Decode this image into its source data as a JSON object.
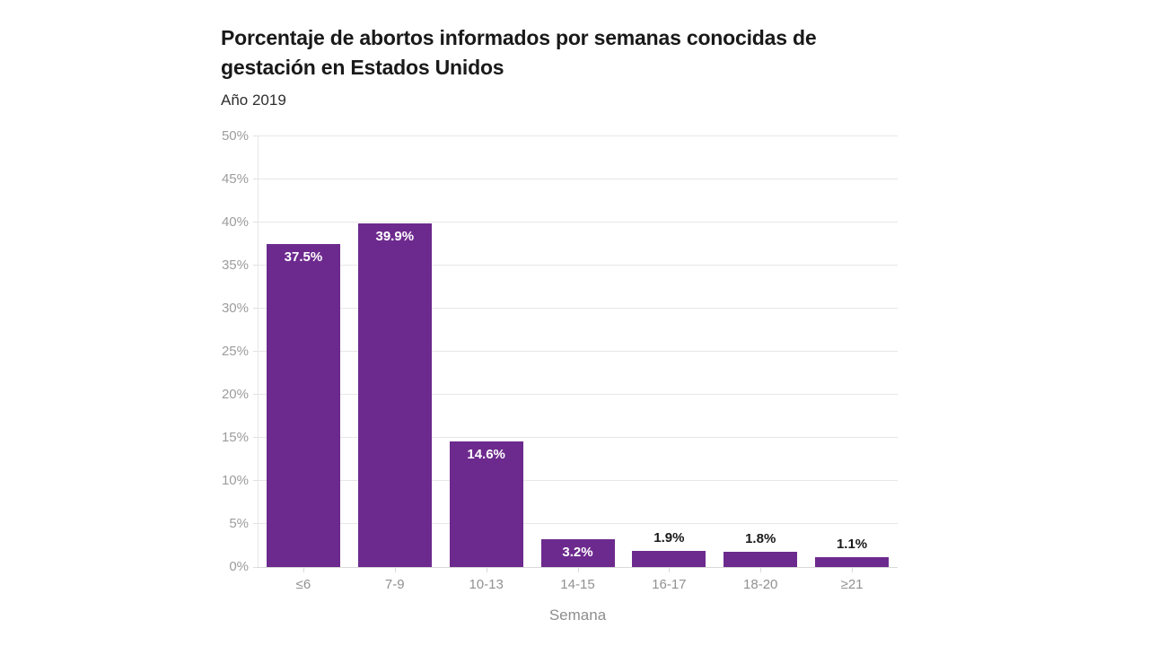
{
  "header": {
    "title": "Porcentaje de abortos informados por semanas conocidas de gestación en Estados Unidos",
    "subtitle": "Año 2019"
  },
  "chart_data": {
    "type": "bar",
    "title": "Porcentaje de abortos informados por semanas conocidas de gestación en Estados Unidos",
    "subtitle": "Año 2019",
    "categories": [
      "≤6",
      "7-9",
      "10-13",
      "14-15",
      "16-17",
      "18-20",
      "≥21"
    ],
    "values": [
      37.5,
      39.9,
      14.6,
      3.2,
      1.9,
      1.8,
      1.1
    ],
    "value_labels": [
      "37.5%",
      "39.9%",
      "14.6%",
      "3.2%",
      "1.9%",
      "1.8%",
      "1.1%"
    ],
    "label_inside": [
      true,
      true,
      true,
      true,
      false,
      false,
      false
    ],
    "xlabel": "Semana",
    "ylabel": "",
    "ylim": [
      0,
      50
    ],
    "ytick_step": 5,
    "ytick_labels": [
      "0%",
      "5%",
      "10%",
      "15%",
      "20%",
      "25%",
      "30%",
      "35%",
      "40%",
      "45%",
      "50%"
    ],
    "grid": "horizontal",
    "legend": "none",
    "colors": {
      "bar": "#6d2a8e",
      "inside_label": "#ffffff",
      "outside_label": "#1a1a1a",
      "axis_text": "#9c9c9c",
      "gridline": "#e7e7e7",
      "title_text": "#191919"
    }
  }
}
